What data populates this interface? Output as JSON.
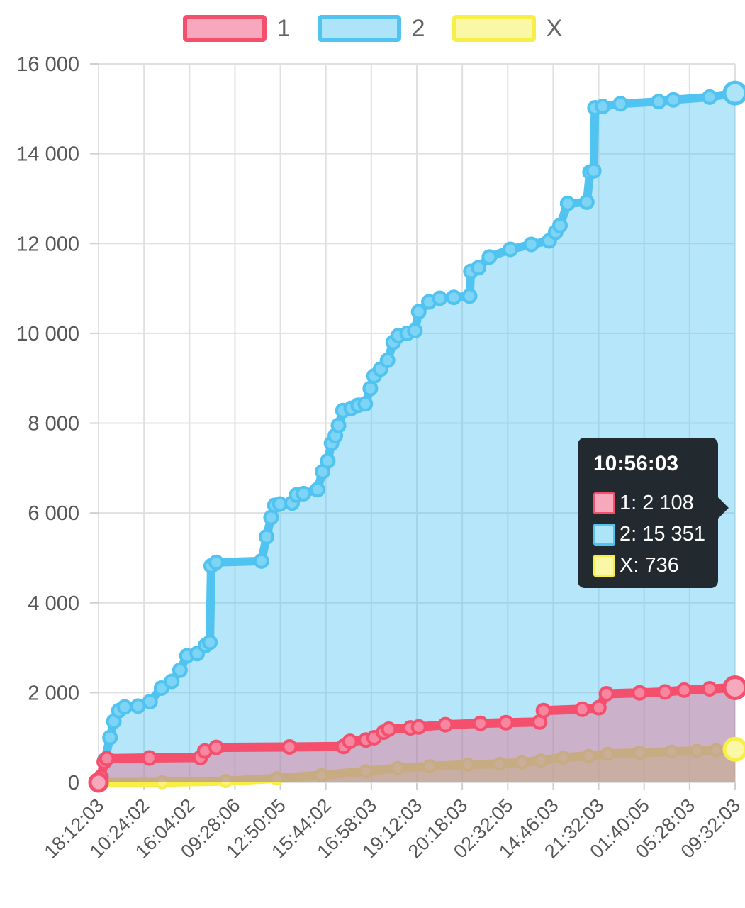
{
  "page": {
    "background": "#ffffff"
  },
  "chart_data": {
    "type": "area",
    "legend_position": "top",
    "grid": true,
    "y_max": 16000,
    "y_ticks": [
      "16 000",
      "14 000",
      "12 000",
      "10 000",
      "8 000",
      "6 000",
      "4 000",
      "2 000",
      "0"
    ],
    "x_ticks": [
      "18:12:03",
      "10:24:02",
      "16:04:02",
      "09:28:06",
      "12:50:05",
      "15:44:02",
      "16:58:03",
      "19:12:03",
      "20:18:03",
      "02:32:05",
      "14:46:03",
      "21:32:03",
      "01:40:05",
      "05:28:03",
      "09:32:03"
    ],
    "axis_text_color": "#575757",
    "grid_color": "#e0e0e0",
    "series": [
      {
        "name": "1",
        "color": "#f4506e",
        "marker_fill": "#f787a0",
        "swatch_fill": "#f8a8bc",
        "area_fill": "rgba(244,80,110,0.34)",
        "final_value": 2108,
        "points": [
          [
            0,
            0
          ],
          [
            0.004,
            120
          ],
          [
            0.009,
            460
          ],
          [
            0.013,
            530
          ],
          [
            0.08,
            545
          ],
          [
            0.16,
            555
          ],
          [
            0.167,
            700
          ],
          [
            0.185,
            780
          ],
          [
            0.3,
            790
          ],
          [
            0.385,
            800
          ],
          [
            0.395,
            915
          ],
          [
            0.42,
            945
          ],
          [
            0.433,
            995
          ],
          [
            0.448,
            1120
          ],
          [
            0.456,
            1185
          ],
          [
            0.49,
            1215
          ],
          [
            0.503,
            1235
          ],
          [
            0.545,
            1285
          ],
          [
            0.6,
            1315
          ],
          [
            0.64,
            1330
          ],
          [
            0.693,
            1345
          ],
          [
            0.699,
            1600
          ],
          [
            0.76,
            1630
          ],
          [
            0.786,
            1665
          ],
          [
            0.798,
            1975
          ],
          [
            0.85,
            1995
          ],
          [
            0.89,
            2015
          ],
          [
            0.92,
            2055
          ],
          [
            0.96,
            2085
          ],
          [
            1,
            2108
          ]
        ]
      },
      {
        "name": "2",
        "color": "#50c3f0",
        "marker_fill": "#7dd4f5",
        "swatch_fill": "#aee4f8",
        "area_fill": "rgba(80,195,240,0.42)",
        "final_value": 15351,
        "points": [
          [
            0.001,
            0
          ],
          [
            0.01,
            500
          ],
          [
            0.018,
            1000
          ],
          [
            0.024,
            1360
          ],
          [
            0.032,
            1600
          ],
          [
            0.041,
            1680
          ],
          [
            0.062,
            1700
          ],
          [
            0.081,
            1800
          ],
          [
            0.099,
            2100
          ],
          [
            0.115,
            2250
          ],
          [
            0.128,
            2500
          ],
          [
            0.139,
            2820
          ],
          [
            0.155,
            2870
          ],
          [
            0.168,
            3050
          ],
          [
            0.175,
            3120
          ],
          [
            0.177,
            4820
          ],
          [
            0.185,
            4900
          ],
          [
            0.256,
            4930
          ],
          [
            0.264,
            5470
          ],
          [
            0.271,
            5900
          ],
          [
            0.277,
            6170
          ],
          [
            0.285,
            6200
          ],
          [
            0.304,
            6220
          ],
          [
            0.311,
            6400
          ],
          [
            0.322,
            6430
          ],
          [
            0.344,
            6520
          ],
          [
            0.352,
            6920
          ],
          [
            0.36,
            7160
          ],
          [
            0.366,
            7550
          ],
          [
            0.372,
            7720
          ],
          [
            0.377,
            7950
          ],
          [
            0.384,
            8280
          ],
          [
            0.397,
            8330
          ],
          [
            0.408,
            8400
          ],
          [
            0.419,
            8430
          ],
          [
            0.427,
            8770
          ],
          [
            0.433,
            9050
          ],
          [
            0.443,
            9200
          ],
          [
            0.454,
            9400
          ],
          [
            0.463,
            9800
          ],
          [
            0.471,
            9950
          ],
          [
            0.485,
            10000
          ],
          [
            0.497,
            10060
          ],
          [
            0.503,
            10480
          ],
          [
            0.519,
            10700
          ],
          [
            0.536,
            10780
          ],
          [
            0.558,
            10800
          ],
          [
            0.583,
            10830
          ],
          [
            0.585,
            11380
          ],
          [
            0.597,
            11460
          ],
          [
            0.614,
            11700
          ],
          [
            0.647,
            11870
          ],
          [
            0.68,
            11980
          ],
          [
            0.708,
            12060
          ],
          [
            0.718,
            12250
          ],
          [
            0.725,
            12400
          ],
          [
            0.737,
            12890
          ],
          [
            0.767,
            12920
          ],
          [
            0.772,
            13590
          ],
          [
            0.778,
            13620
          ],
          [
            0.78,
            15020
          ],
          [
            0.792,
            15050
          ],
          [
            0.82,
            15110
          ],
          [
            0.88,
            15160
          ],
          [
            0.903,
            15200
          ],
          [
            0.96,
            15260
          ],
          [
            1,
            15351
          ]
        ]
      },
      {
        "name": "X",
        "color": "#f7ee46",
        "marker_fill": "#faf37e",
        "swatch_fill": "#faf7a6",
        "area_fill": "rgba(247,238,70,0.55)",
        "final_value": 736,
        "points": [
          [
            0,
            0
          ],
          [
            0.1,
            5
          ],
          [
            0.2,
            30
          ],
          [
            0.28,
            90
          ],
          [
            0.35,
            160
          ],
          [
            0.42,
            250
          ],
          [
            0.47,
            320
          ],
          [
            0.52,
            360
          ],
          [
            0.58,
            395
          ],
          [
            0.63,
            415
          ],
          [
            0.665,
            445
          ],
          [
            0.695,
            490
          ],
          [
            0.73,
            555
          ],
          [
            0.77,
            590
          ],
          [
            0.8,
            635
          ],
          [
            0.85,
            660
          ],
          [
            0.9,
            685
          ],
          [
            0.94,
            702
          ],
          [
            0.97,
            718
          ],
          [
            1,
            736
          ]
        ]
      }
    ],
    "tooltip": {
      "title": "10:56:03",
      "rows": [
        {
          "series": "1",
          "text": "1: 2 108"
        },
        {
          "series": "2",
          "text": "2: 15 351"
        },
        {
          "series": "X",
          "text": "X: 736"
        }
      ]
    }
  }
}
